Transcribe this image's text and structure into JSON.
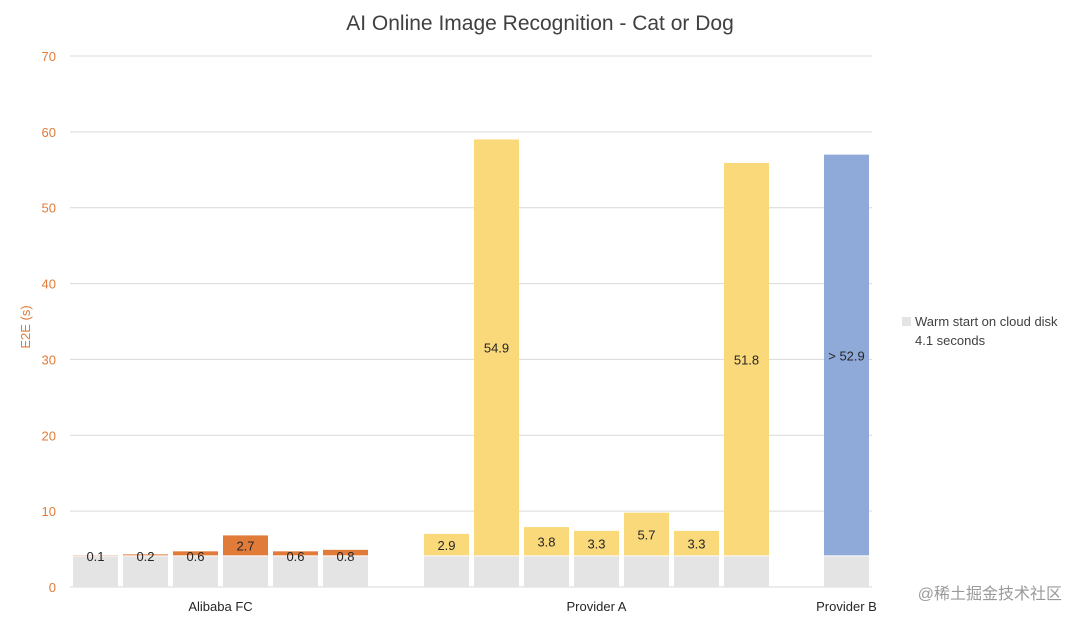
{
  "chart_data": {
    "type": "bar",
    "stacked": true,
    "title": "AI Online Image Recognition - Cat or Dog",
    "ylabel": "E2E (s)",
    "ylim": [
      0,
      70
    ],
    "yticks": [
      0,
      10,
      20,
      30,
      40,
      50,
      60,
      70
    ],
    "grid": true,
    "groups": [
      "Alibaba FC",
      "Provider A",
      "Provider B"
    ],
    "base_value": 4.1,
    "bars": [
      {
        "group": "Alibaba FC",
        "label": "0.1",
        "value": 0.1
      },
      {
        "group": "Alibaba FC",
        "label": "0.2",
        "value": 0.2
      },
      {
        "group": "Alibaba FC",
        "label": "0.6",
        "value": 0.6
      },
      {
        "group": "Alibaba FC",
        "label": "2.7",
        "value": 2.7
      },
      {
        "group": "Alibaba FC",
        "label": "0.6",
        "value": 0.6
      },
      {
        "group": "Alibaba FC",
        "label": "0.8",
        "value": 0.8
      },
      {
        "group": "Provider A",
        "label": "2.9",
        "value": 2.9
      },
      {
        "group": "Provider A",
        "label": "54.9",
        "value": 54.9
      },
      {
        "group": "Provider A",
        "label": "3.8",
        "value": 3.8
      },
      {
        "group": "Provider A",
        "label": "3.3",
        "value": 3.3
      },
      {
        "group": "Provider A",
        "label": "5.7",
        "value": 5.7
      },
      {
        "group": "Provider A",
        "label": "3.3",
        "value": 3.3
      },
      {
        "group": "Provider A",
        "label": "51.8",
        "value": 51.8
      },
      {
        "group": "Provider B",
        "label": "> 52.9",
        "value": 52.9
      }
    ],
    "legend": {
      "placement": "right",
      "line1": "Warm start on cloud disk",
      "line2": "4.1 seconds"
    },
    "colors": {
      "base": "#e4e4e4",
      "Alibaba FC": "#e07b39",
      "Provider A": "#fad97a",
      "Provider B": "#8faad8",
      "axis_text": "#e07b39",
      "title": "#404040",
      "grid": "#d9d9d9"
    }
  },
  "watermark": "@稀土掘金技术社区"
}
